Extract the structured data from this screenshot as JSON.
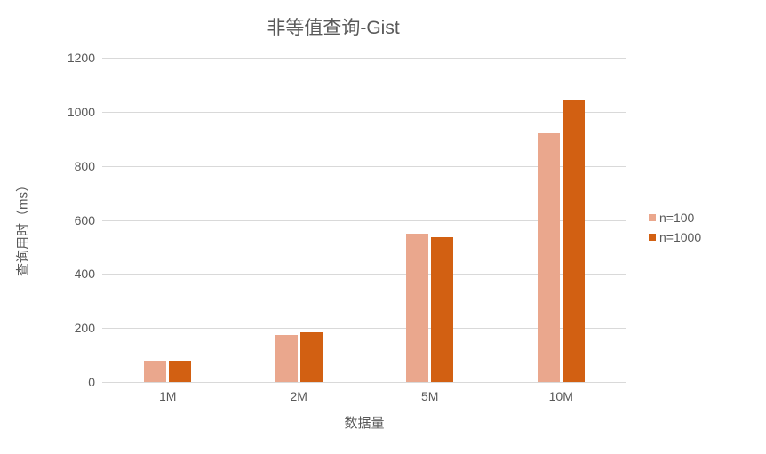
{
  "chart": {
    "type": "bar",
    "title": "非等值查询-Gist",
    "title_fontsize": 21,
    "title_color": "#595959",
    "xlabel": "数据量",
    "ylabel": "查询用时（ms）",
    "axis_label_fontsize": 15,
    "tick_fontsize": 14,
    "text_color": "#595959",
    "background_color": "#ffffff",
    "grid_color": "#d9d9d9",
    "categories": [
      "1M",
      "2M",
      "5M",
      "10M"
    ],
    "ylim": [
      0,
      1200
    ],
    "ytick_step": 200,
    "yticks": [
      0,
      200,
      400,
      600,
      800,
      1000,
      1200
    ],
    "series": [
      {
        "name": "n=100",
        "color": "#eaa78d",
        "values": [
          80,
          175,
          550,
          920
        ]
      },
      {
        "name": "n=1000",
        "color": "#d26012",
        "values": [
          80,
          185,
          535,
          1045
        ]
      }
    ],
    "bar_width_ratio": 0.17,
    "group_gap_ratio": 0.02,
    "legend_fontsize": 14
  }
}
